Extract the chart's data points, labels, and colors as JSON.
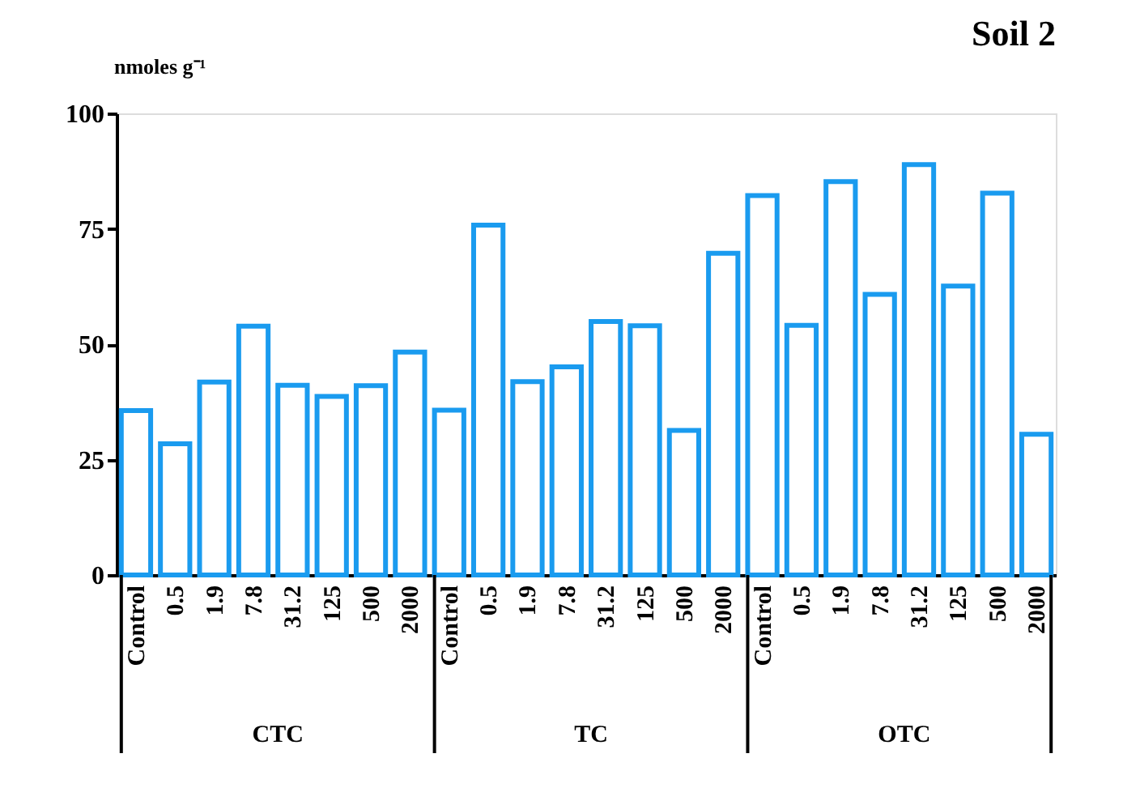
{
  "chart_data": {
    "type": "bar",
    "title": "Soil 2",
    "ylabel": "nmoles g⁻¹",
    "categories": [
      "Control",
      "0.5",
      "1.9",
      "7.8",
      "31.2",
      "125",
      "500",
      "2000",
      "Control",
      "0.5",
      "1.9",
      "7.8",
      "31.2",
      "125",
      "500",
      "2000",
      "Control",
      "0.5",
      "1.9",
      "7.8",
      "31.2",
      "125",
      "500",
      "2000"
    ],
    "values": [
      35.6,
      28.4,
      41.8,
      53.9,
      41.1,
      38.7,
      41.0,
      48.3,
      35.7,
      75.8,
      41.9,
      45.1,
      54.9,
      54.0,
      31.3,
      69.7,
      82.2,
      54.1,
      85.2,
      60.8,
      88.9,
      62.6,
      82.7,
      30.5
    ],
    "color": "#1a9bef",
    "annotations": [
      "CTC",
      "TC",
      "OTC"
    ],
    "ylim": [
      0,
      100
    ],
    "yticks": [
      0,
      25,
      50,
      75,
      100
    ],
    "grid": false
  }
}
